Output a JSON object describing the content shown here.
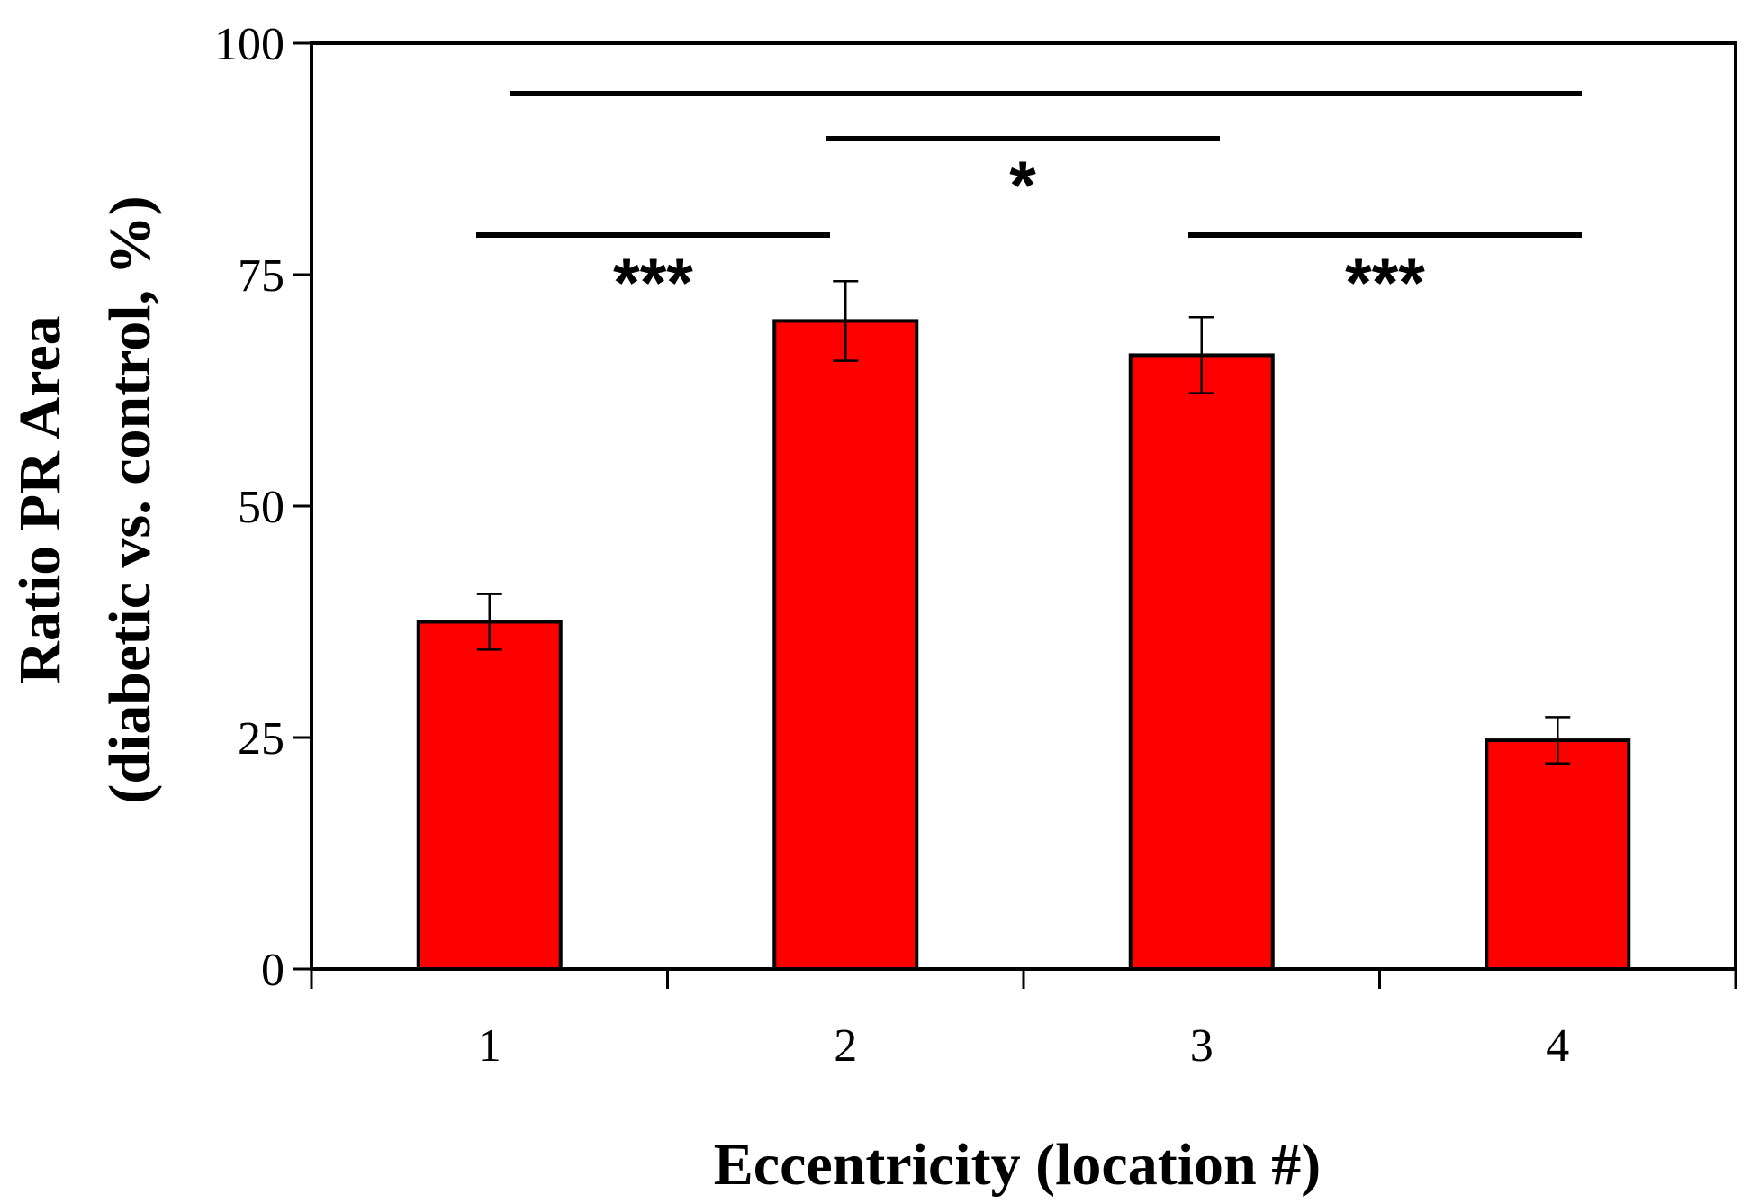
{
  "chart_data": {
    "type": "bar",
    "categories": [
      "1",
      "2",
      "3",
      "4"
    ],
    "series": [
      {
        "values": [
          37.5,
          70,
          66.3,
          24.7
        ],
        "errors": [
          3.0,
          4.3,
          4.1,
          2.5
        ],
        "color": "#ff0000"
      }
    ],
    "xlabel": "Eccentricity (location #)",
    "ylabel_line1": "Ratio PR Area",
    "ylabel_line2": "(diabetic vs. control, %)",
    "ylim": [
      0,
      100
    ],
    "yticks": [
      "0",
      "25",
      "50",
      "75",
      "100"
    ],
    "grid": false,
    "significance": [
      {
        "from": 1,
        "to": 4,
        "label": ""
      },
      {
        "from": 2,
        "to": 3,
        "label": "*"
      },
      {
        "from": 1,
        "to": 2,
        "label": "***"
      },
      {
        "from": 3,
        "to": 4,
        "label": "***"
      }
    ]
  }
}
